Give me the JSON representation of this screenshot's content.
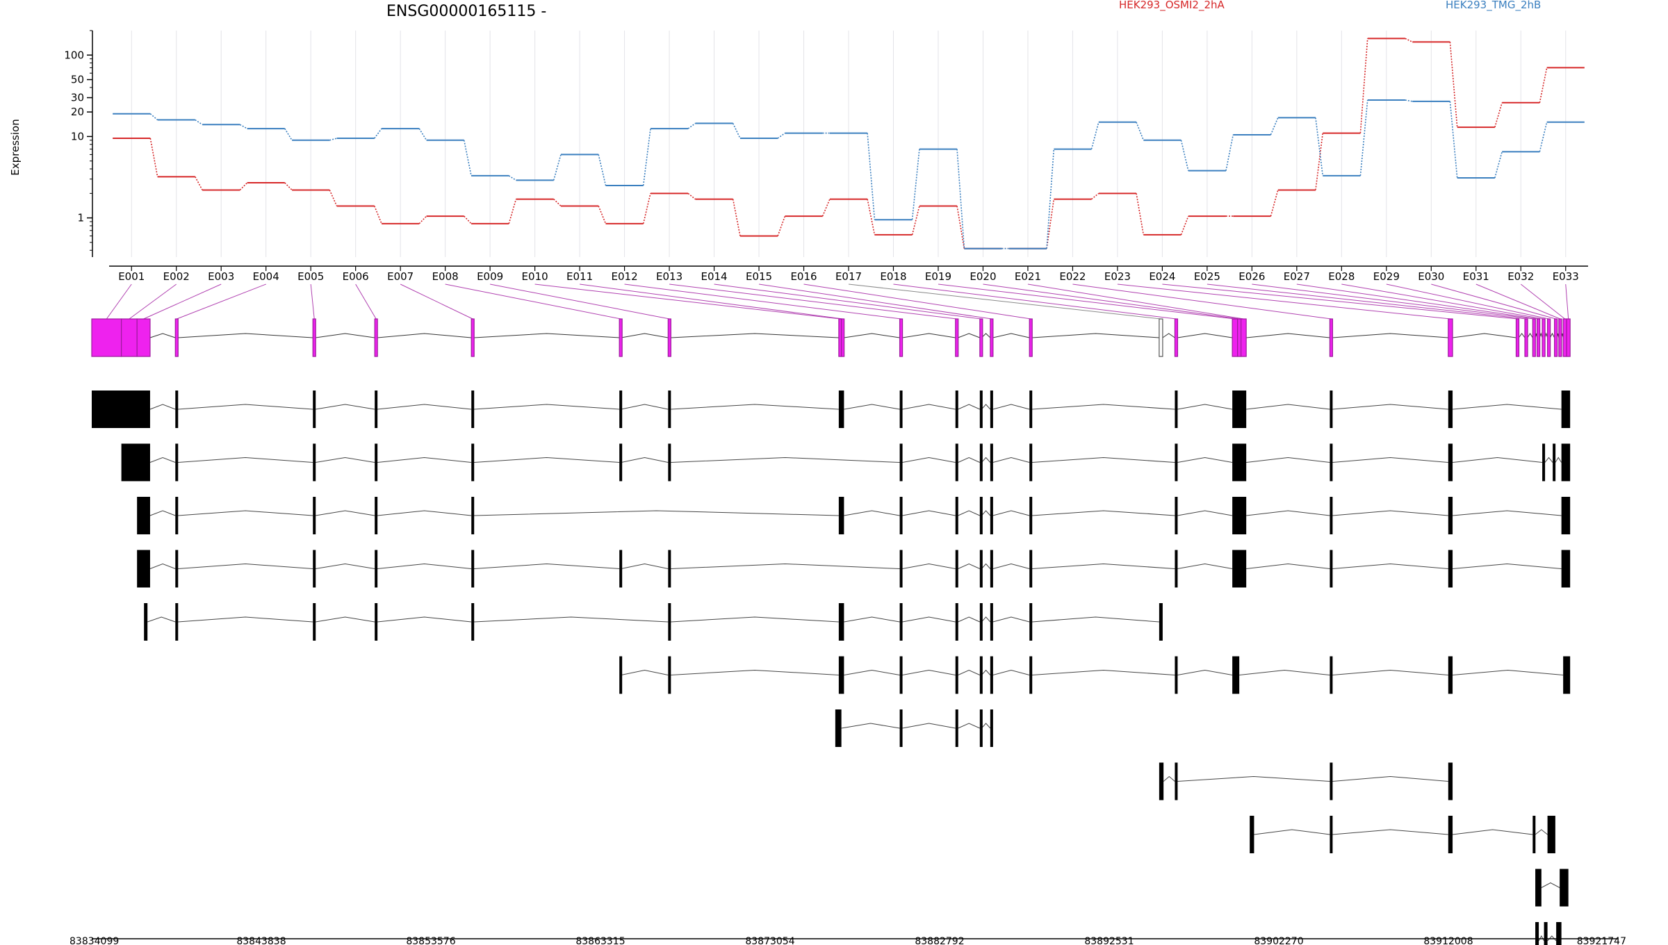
{
  "colors": {
    "series_a": "#d62728",
    "series_b": "#3a7fbf",
    "exon_fill": "#ee22ee",
    "exon_stroke": "#9b1b9b",
    "connector": "#b040b0",
    "transcript": "#000000",
    "grid": "#e3e3e8"
  },
  "chart_data": {
    "type": "line",
    "title": "ENSG00000165115 -",
    "ylabel": "Expression",
    "yscale": "log",
    "ylim": [
      0.33,
      200
    ],
    "yticks": [
      1,
      10,
      20,
      30,
      50,
      100
    ],
    "ytick_labels": [
      "1",
      "10",
      "20",
      "30",
      "50",
      "100"
    ],
    "categories": [
      "E001",
      "E002",
      "E003",
      "E004",
      "E005",
      "E006",
      "E007",
      "E008",
      "E009",
      "E010",
      "E011",
      "E012",
      "E013",
      "E014",
      "E015",
      "E016",
      "E017",
      "E018",
      "E019",
      "E020",
      "E021",
      "E022",
      "E023",
      "E024",
      "E025",
      "E026",
      "E027",
      "E028",
      "E029",
      "E030",
      "E031",
      "E032",
      "E033"
    ],
    "series": [
      {
        "name": "HEK293_OSMI2_2hA",
        "color": "#d62728",
        "values": [
          9.5,
          3.2,
          2.2,
          2.7,
          2.2,
          1.4,
          0.85,
          1.05,
          0.85,
          1.7,
          1.4,
          0.85,
          2.0,
          1.7,
          0.6,
          1.05,
          1.7,
          0.62,
          1.4,
          0.42,
          0.42,
          1.7,
          2.0,
          0.62,
          1.05,
          1.05,
          2.2,
          11,
          160,
          145,
          13,
          26,
          70
        ]
      },
      {
        "name": "HEK293_TMG_2hB",
        "color": "#3a7fbf",
        "values": [
          19,
          16,
          14,
          12.5,
          9.0,
          9.5,
          12.5,
          9.0,
          3.3,
          2.9,
          6.0,
          2.5,
          12.5,
          14.5,
          9.5,
          11,
          11,
          0.95,
          7.0,
          0.42,
          0.42,
          7.0,
          15,
          9.0,
          3.8,
          10.5,
          17,
          3.3,
          28,
          27,
          3.1,
          6.5,
          15
        ]
      }
    ],
    "genomic_axis": {
      "min": 83834099,
      "max": 83921747,
      "tick_labels": [
        "83834099",
        "83843838",
        "83853576",
        "83863315",
        "83873054",
        "83882792",
        "83892531",
        "83902270",
        "83912008",
        "83921747"
      ]
    },
    "exons": [
      {
        "s": 83834099,
        "e": 83835800
      },
      {
        "s": 83835800,
        "e": 83836700
      },
      {
        "s": 83836700,
        "e": 83837450
      },
      {
        "s": 83838900,
        "e": 83839050
      },
      {
        "s": 83846800,
        "e": 83846950
      },
      {
        "s": 83850350,
        "e": 83850500
      },
      {
        "s": 83855900,
        "e": 83856050
      },
      {
        "s": 83864400,
        "e": 83864500
      },
      {
        "s": 83867200,
        "e": 83867350
      },
      {
        "s": 83877000,
        "e": 83877150
      },
      {
        "s": 83877150,
        "e": 83877300
      },
      {
        "s": 83880500,
        "e": 83880650
      },
      {
        "s": 83883700,
        "e": 83883850
      },
      {
        "s": 83885100,
        "e": 83885200
      },
      {
        "s": 83885700,
        "e": 83885850
      },
      {
        "s": 83887950,
        "e": 83888100
      },
      {
        "s": 83895400,
        "e": 83895600,
        "open": true
      },
      {
        "s": 83896300,
        "e": 83896450
      },
      {
        "s": 83899600,
        "e": 83899900
      },
      {
        "s": 83899900,
        "e": 83900100
      },
      {
        "s": 83900100,
        "e": 83900400
      },
      {
        "s": 83905200,
        "e": 83905350
      },
      {
        "s": 83912000,
        "e": 83912250
      },
      {
        "s": 83915900,
        "e": 83916050
      },
      {
        "s": 83916400,
        "e": 83916550
      },
      {
        "s": 83916850,
        "e": 83917000
      },
      {
        "s": 83917100,
        "e": 83917250
      },
      {
        "s": 83917400,
        "e": 83917550
      },
      {
        "s": 83917700,
        "e": 83917850
      },
      {
        "s": 83918100,
        "e": 83918250
      },
      {
        "s": 83918350,
        "e": 83918500
      },
      {
        "s": 83918600,
        "e": 83918800
      },
      {
        "s": 83918800,
        "e": 83919000
      }
    ],
    "transcripts": [
      [
        [
          83834099,
          83837450
        ],
        [
          83838900,
          83839050
        ],
        [
          83846800,
          83846950
        ],
        [
          83850350,
          83850500
        ],
        [
          83855900,
          83856050
        ],
        [
          83864400,
          83864500
        ],
        [
          83867200,
          83867350
        ],
        [
          83877000,
          83877300
        ],
        [
          83880500,
          83880650
        ],
        [
          83883700,
          83883850
        ],
        [
          83885100,
          83885200
        ],
        [
          83885700,
          83885850
        ],
        [
          83887950,
          83888100
        ],
        [
          83896300,
          83896450
        ],
        [
          83899600,
          83900400
        ],
        [
          83905200,
          83905350
        ],
        [
          83912000,
          83912250
        ],
        [
          83918500,
          83919000
        ]
      ],
      [
        [
          83835800,
          83837450
        ],
        [
          83838900,
          83839050
        ],
        [
          83846800,
          83846950
        ],
        [
          83850350,
          83850500
        ],
        [
          83855900,
          83856050
        ],
        [
          83864400,
          83864500
        ],
        [
          83867200,
          83867350
        ],
        [
          83880500,
          83880650
        ],
        [
          83883700,
          83883850
        ],
        [
          83885100,
          83885200
        ],
        [
          83885700,
          83885850
        ],
        [
          83887950,
          83888100
        ],
        [
          83896300,
          83896450
        ],
        [
          83899600,
          83900400
        ],
        [
          83905200,
          83905350
        ],
        [
          83912000,
          83912250
        ],
        [
          83917400,
          83917550
        ],
        [
          83918000,
          83918150
        ],
        [
          83918500,
          83919000
        ]
      ],
      [
        [
          83836700,
          83837450
        ],
        [
          83838900,
          83839050
        ],
        [
          83846800,
          83846950
        ],
        [
          83850350,
          83850500
        ],
        [
          83855900,
          83856050
        ],
        [
          83877000,
          83877300
        ],
        [
          83880500,
          83880650
        ],
        [
          83883700,
          83883850
        ],
        [
          83885100,
          83885200
        ],
        [
          83885700,
          83885850
        ],
        [
          83887950,
          83888100
        ],
        [
          83896300,
          83896450
        ],
        [
          83899600,
          83900400
        ],
        [
          83905200,
          83905350
        ],
        [
          83912000,
          83912250
        ],
        [
          83918500,
          83919000
        ]
      ],
      [
        [
          83836700,
          83837450
        ],
        [
          83838900,
          83839050
        ],
        [
          83846800,
          83846950
        ],
        [
          83850350,
          83850500
        ],
        [
          83855900,
          83856050
        ],
        [
          83864400,
          83864500
        ],
        [
          83867200,
          83867350
        ],
        [
          83880500,
          83880650
        ],
        [
          83883700,
          83883850
        ],
        [
          83885100,
          83885200
        ],
        [
          83885700,
          83885850
        ],
        [
          83887950,
          83888100
        ],
        [
          83896300,
          83896450
        ],
        [
          83899600,
          83900400
        ],
        [
          83905200,
          83905350
        ],
        [
          83912000,
          83912250
        ],
        [
          83918500,
          83919000
        ]
      ],
      [
        [
          83837100,
          83837300
        ],
        [
          83838900,
          83839050
        ],
        [
          83846800,
          83846950
        ],
        [
          83850350,
          83850500
        ],
        [
          83855900,
          83856050
        ],
        [
          83867200,
          83867350
        ],
        [
          83877000,
          83877300
        ],
        [
          83880500,
          83880650
        ],
        [
          83883700,
          83883850
        ],
        [
          83885100,
          83885200
        ],
        [
          83885700,
          83885850
        ],
        [
          83887950,
          83888100
        ],
        [
          83895400,
          83895600
        ]
      ],
      [
        [
          83864400,
          83864500
        ],
        [
          83867200,
          83867350
        ],
        [
          83877000,
          83877300
        ],
        [
          83880500,
          83880650
        ],
        [
          83883700,
          83883850
        ],
        [
          83885100,
          83885200
        ],
        [
          83885700,
          83885850
        ],
        [
          83887950,
          83888100
        ],
        [
          83896300,
          83896450
        ],
        [
          83899600,
          83900000
        ],
        [
          83905200,
          83905350
        ],
        [
          83912000,
          83912250
        ],
        [
          83918600,
          83919000
        ]
      ],
      [
        [
          83876800,
          83877150
        ],
        [
          83880500,
          83880650
        ],
        [
          83883700,
          83883850
        ],
        [
          83885100,
          83885200
        ],
        [
          83885700,
          83885850
        ]
      ],
      [
        [
          83895400,
          83895650
        ],
        [
          83896300,
          83896450
        ],
        [
          83905200,
          83905350
        ],
        [
          83912000,
          83912250
        ]
      ],
      [
        [
          83900600,
          83900850
        ],
        [
          83905200,
          83905350
        ],
        [
          83912000,
          83912250
        ],
        [
          83916850,
          83917000
        ],
        [
          83917700,
          83918150
        ]
      ],
      [
        [
          83917000,
          83917350
        ],
        [
          83918400,
          83918900
        ]
      ],
      [
        [
          83917000,
          83917200
        ],
        [
          83917500,
          83917700
        ],
        [
          83918200,
          83918500
        ]
      ]
    ]
  }
}
